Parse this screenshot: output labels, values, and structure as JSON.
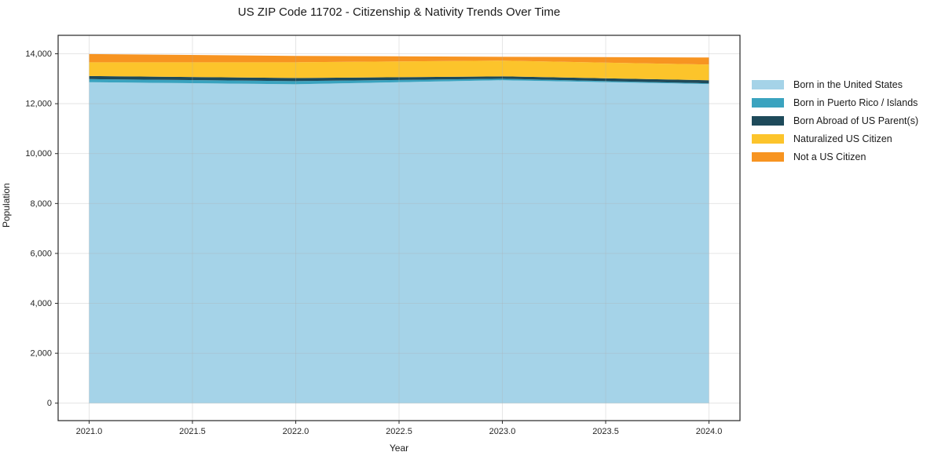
{
  "title": "US ZIP Code 11702 - Citizenship & Nativity Trends Over Time",
  "chart_data": {
    "type": "area",
    "stacked": true,
    "title": "US ZIP Code 11702 - Citizenship & Nativity Trends Over Time",
    "xlabel": "Year",
    "ylabel": "Population",
    "x": [
      2021,
      2022,
      2023,
      2024
    ],
    "series": [
      {
        "name": "Born in the United States",
        "color": "#a5d3e8",
        "values": [
          12860,
          12780,
          12940,
          12785
        ]
      },
      {
        "name": "Born in Puerto Rico / Islands",
        "color": "#3aa3bf",
        "values": [
          125,
          125,
          60,
          30
        ]
      },
      {
        "name": "Born Abroad of US Parent(s)",
        "color": "#1e4a5a",
        "values": [
          125,
          125,
          95,
          125
        ]
      },
      {
        "name": "Naturalized US Citizen",
        "color": "#fcc42b",
        "values": [
          550,
          630,
          630,
          630
        ]
      },
      {
        "name": "Not a US Citizen",
        "color": "#f79421",
        "values": [
          330,
          255,
          155,
          280
        ]
      }
    ],
    "stacked_totals": [
      13990,
      13915,
      13880,
      13850
    ],
    "x_ticks": [
      2021.0,
      2021.5,
      2022.0,
      2022.5,
      2023.0,
      2023.5,
      2024.0
    ],
    "x_tick_labels": [
      "2021.0",
      "2021.5",
      "2022.0",
      "2022.5",
      "2023.0",
      "2023.5",
      "2024.0"
    ],
    "y_ticks": [
      0,
      2000,
      4000,
      6000,
      8000,
      10000,
      12000,
      14000
    ],
    "y_tick_labels": [
      "0",
      "2,000",
      "4,000",
      "6,000",
      "8,000",
      "10,000",
      "12,000",
      "14,000"
    ],
    "xlim": [
      2020.85,
      2024.15
    ],
    "ylim": [
      -700,
      14740
    ],
    "grid": true,
    "legend_position": "right"
  },
  "style_colors": {
    "background": "#ffffff",
    "spine": "#262626",
    "gridline": "#b0b0b0",
    "text": "#262626"
  }
}
